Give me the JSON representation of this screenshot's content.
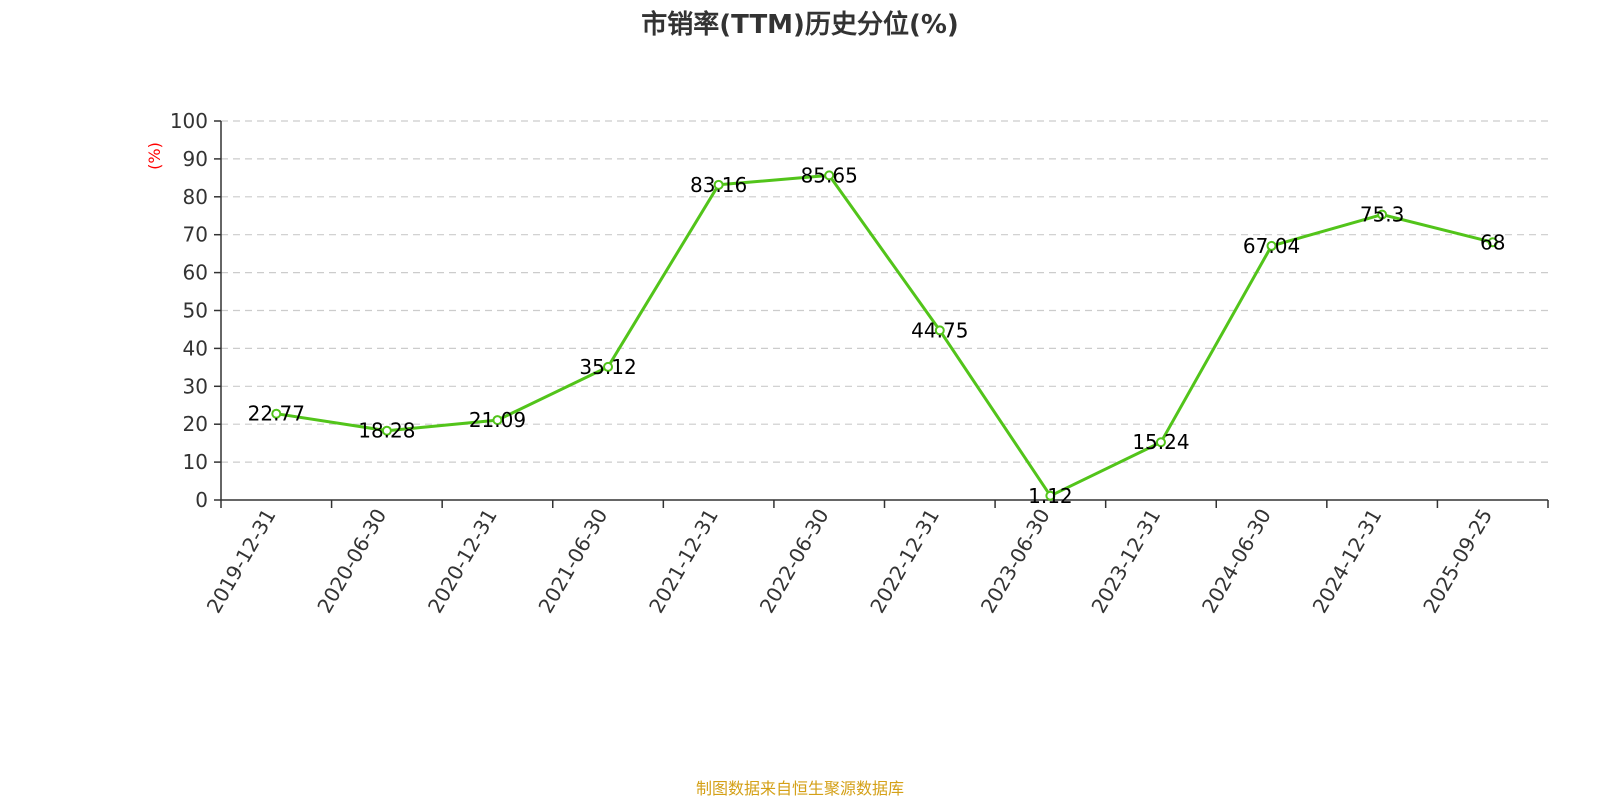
{
  "chart_data": {
    "type": "line",
    "title": "市销率(TTM)历史分位(%)",
    "ylabel": "(%)",
    "xlabel": "",
    "categories": [
      "2019-12-31",
      "2020-06-30",
      "2020-12-31",
      "2021-06-30",
      "2021-12-31",
      "2022-06-30",
      "2022-12-31",
      "2023-06-30",
      "2023-12-31",
      "2024-06-30",
      "2024-12-31",
      "2025-09-25"
    ],
    "values": [
      22.77,
      18.28,
      21.09,
      35.12,
      83.16,
      85.65,
      44.75,
      1.12,
      15.24,
      67.04,
      75.3,
      68
    ],
    "value_labels": [
      "22.77",
      "18.28",
      "21.09",
      "35.12",
      "83.16",
      "85.65",
      "44.75",
      "1.12",
      "15.24",
      "67.04",
      "75.3",
      "68"
    ],
    "y_ticks": [
      "0",
      "10",
      "20",
      "30",
      "40",
      "50",
      "60",
      "70",
      "80",
      "90",
      "100"
    ],
    "ylim": [
      0,
      100
    ],
    "grid": true,
    "grid_style": "dashed",
    "line_color": "#52c41a",
    "label_color": "#ff0000",
    "source_color": "#d4a017",
    "source": "制图数据来自恒生聚源数据库"
  }
}
